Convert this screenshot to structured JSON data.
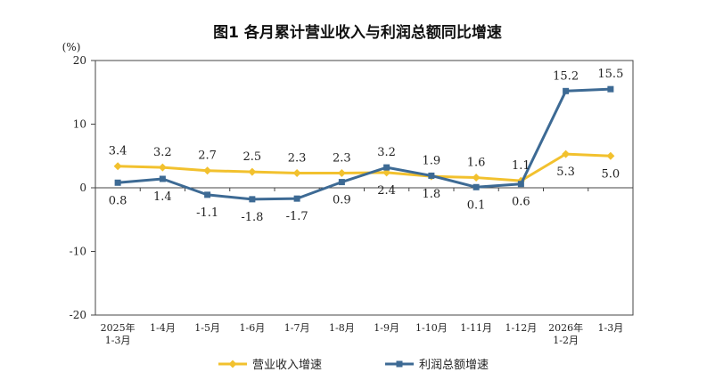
{
  "chart_data": {
    "type": "line",
    "title": "图1  各月累计营业收入与利润总额同比增速",
    "ylabel": "(%)",
    "ylim": [
      -20,
      20
    ],
    "yticks": [
      -20,
      -10,
      0,
      10,
      20
    ],
    "categories": [
      [
        "2025年",
        "1-3月"
      ],
      [
        "1-4月"
      ],
      [
        "1-5月"
      ],
      [
        "1-6月"
      ],
      [
        "1-7月"
      ],
      [
        "1-8月"
      ],
      [
        "1-9月"
      ],
      [
        "1-10月"
      ],
      [
        "1-11月"
      ],
      [
        "1-12月"
      ],
      [
        "2026年",
        "1-2月"
      ],
      [
        "1-3月"
      ]
    ],
    "series": [
      {
        "name": "营业收入增速",
        "color": "#f2c12e",
        "marker": "diamond",
        "values": [
          3.4,
          3.2,
          2.7,
          2.5,
          2.3,
          2.3,
          2.4,
          1.8,
          1.6,
          1.1,
          5.3,
          5.0
        ],
        "labels": [
          "3.4",
          "3.2",
          "2.7",
          "2.5",
          "2.3",
          "2.3",
          "2.4",
          "1.8",
          "1.6",
          "1.1",
          "5.3",
          "5.0"
        ]
      },
      {
        "name": "利润总额增速",
        "color": "#3d6a94",
        "marker": "square",
        "values": [
          0.8,
          1.4,
          -1.1,
          -1.8,
          -1.7,
          0.9,
          3.2,
          1.9,
          0.1,
          0.6,
          15.2,
          15.5
        ],
        "labels": [
          "0.8",
          "1.4",
          "-1.1",
          "-1.8",
          "-1.7",
          "0.9",
          "3.2",
          "1.9",
          "0.1",
          "0.6",
          "15.2",
          "15.5"
        ]
      }
    ],
    "grid": false,
    "legend": "bottom"
  }
}
